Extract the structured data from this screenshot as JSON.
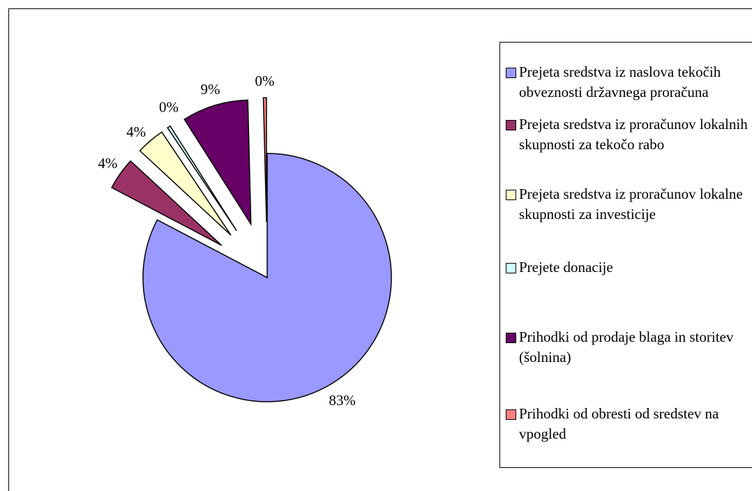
{
  "chart_data": {
    "type": "pie",
    "categories": [
      "Prejeta sredstva iz naslova tekočih obveznosti državnega proračuna",
      "Prejeta sredstva iz proračunov lokalnih skupnosti za tekočo rabo",
      "Prejeta sredstva iz proračunov lokalne skupnosti za investicije",
      "Prejete donacije",
      "Prihodki od prodaje blaga in storitev (šolnina)",
      "Prihodki od obresti od sredstev na vpogled"
    ],
    "values": [
      82.7,
      4.2,
      3.7,
      0.4,
      8.6,
      0.4
    ],
    "value_labels": [
      "83%",
      "4%",
      "4%",
      "0%",
      "9%",
      "0%"
    ],
    "colors": [
      "#9999ff",
      "#993366",
      "#ffffcc",
      "#ccffff",
      "#660066",
      "#ff8080"
    ],
    "legend": "right"
  }
}
